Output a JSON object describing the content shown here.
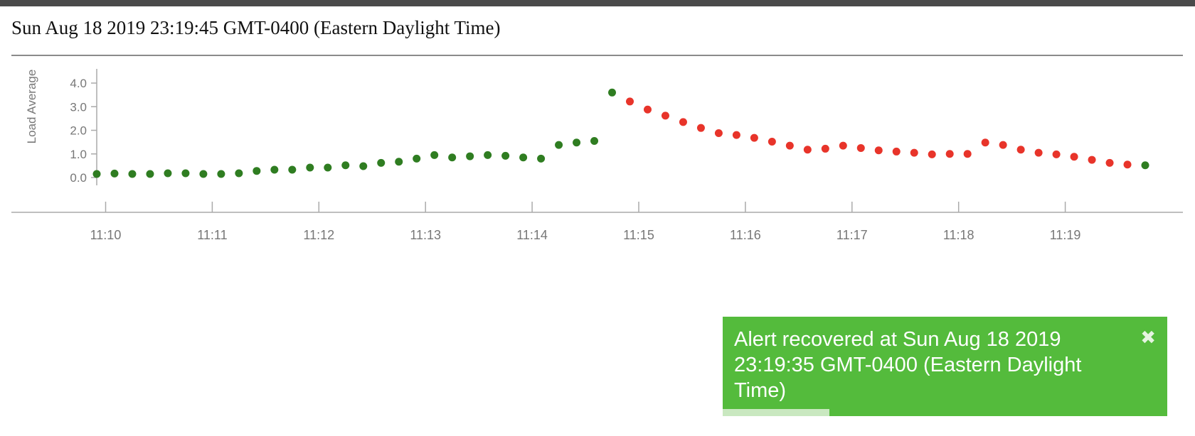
{
  "header": {
    "timestamp": "Sun Aug 18 2019 23:19:45 GMT-0400 (Eastern Daylight Time)"
  },
  "colors": {
    "ok": "#2f7d21",
    "alert": "#e8342a",
    "toast_bg": "#54bb3c"
  },
  "chart_data": {
    "type": "scatter",
    "ylabel": "Load Average",
    "xlabel": "",
    "ylim": [
      -0.4,
      4.8
    ],
    "xlim": [
      "11:09:55",
      "11:19:55"
    ],
    "y_ticks": [
      "0.0",
      "1.0",
      "2.0",
      "3.0",
      "4.0"
    ],
    "x_ticks": [
      "11:10",
      "11:11",
      "11:12",
      "11:13",
      "11:14",
      "11:15",
      "11:16",
      "11:17",
      "11:18",
      "11:19"
    ],
    "grid": false,
    "series": [
      {
        "color": "#2f7d21",
        "points": [
          [
            "11:09:55",
            0.15
          ],
          [
            "11:10:05",
            0.17
          ],
          [
            "11:10:15",
            0.15
          ],
          [
            "11:10:25",
            0.15
          ],
          [
            "11:10:35",
            0.18
          ],
          [
            "11:10:45",
            0.18
          ],
          [
            "11:10:55",
            0.15
          ],
          [
            "11:11:05",
            0.15
          ],
          [
            "11:11:15",
            0.18
          ],
          [
            "11:11:25",
            0.28
          ],
          [
            "11:11:35",
            0.33
          ],
          [
            "11:11:45",
            0.33
          ],
          [
            "11:11:55",
            0.42
          ],
          [
            "11:12:05",
            0.42
          ],
          [
            "11:12:15",
            0.52
          ],
          [
            "11:12:25",
            0.48
          ],
          [
            "11:12:35",
            0.62
          ],
          [
            "11:12:45",
            0.67
          ],
          [
            "11:12:55",
            0.8
          ],
          [
            "11:13:05",
            0.95
          ],
          [
            "11:13:15",
            0.85
          ],
          [
            "11:13:25",
            0.9
          ],
          [
            "11:13:35",
            0.95
          ],
          [
            "11:13:45",
            0.92
          ],
          [
            "11:13:55",
            0.85
          ],
          [
            "11:14:05",
            0.8
          ],
          [
            "11:14:15",
            1.38
          ],
          [
            "11:14:25",
            1.48
          ],
          [
            "11:14:35",
            1.55
          ],
          [
            "11:14:45",
            3.6
          ]
        ]
      },
      {
        "color": "#e8342a",
        "points": [
          [
            "11:14:55",
            3.22
          ],
          [
            "11:15:05",
            2.88
          ],
          [
            "11:15:15",
            2.62
          ],
          [
            "11:15:25",
            2.35
          ],
          [
            "11:15:35",
            2.1
          ],
          [
            "11:15:45",
            1.88
          ],
          [
            "11:15:55",
            1.8
          ],
          [
            "11:16:05",
            1.68
          ],
          [
            "11:16:15",
            1.52
          ],
          [
            "11:16:25",
            1.35
          ],
          [
            "11:16:35",
            1.18
          ],
          [
            "11:16:45",
            1.22
          ],
          [
            "11:16:55",
            1.35
          ],
          [
            "11:17:05",
            1.25
          ],
          [
            "11:17:15",
            1.15
          ],
          [
            "11:17:25",
            1.1
          ],
          [
            "11:17:35",
            1.05
          ],
          [
            "11:17:45",
            0.98
          ],
          [
            "11:17:55",
            1.0
          ],
          [
            "11:18:05",
            1.0
          ],
          [
            "11:18:15",
            1.48
          ],
          [
            "11:18:25",
            1.38
          ],
          [
            "11:18:35",
            1.18
          ],
          [
            "11:18:45",
            1.05
          ],
          [
            "11:18:55",
            0.98
          ],
          [
            "11:19:05",
            0.88
          ],
          [
            "11:19:15",
            0.75
          ],
          [
            "11:19:25",
            0.62
          ],
          [
            "11:19:35",
            0.55
          ]
        ]
      },
      {
        "color": "#2f7d21",
        "points": [
          [
            "11:19:45",
            0.52
          ]
        ]
      }
    ]
  },
  "toast": {
    "message": "Alert recovered at Sun Aug 18 2019 23:19:35 GMT-0400 (Eastern Daylight Time)",
    "close_glyph": "✖",
    "progress_fraction": 0.24
  }
}
